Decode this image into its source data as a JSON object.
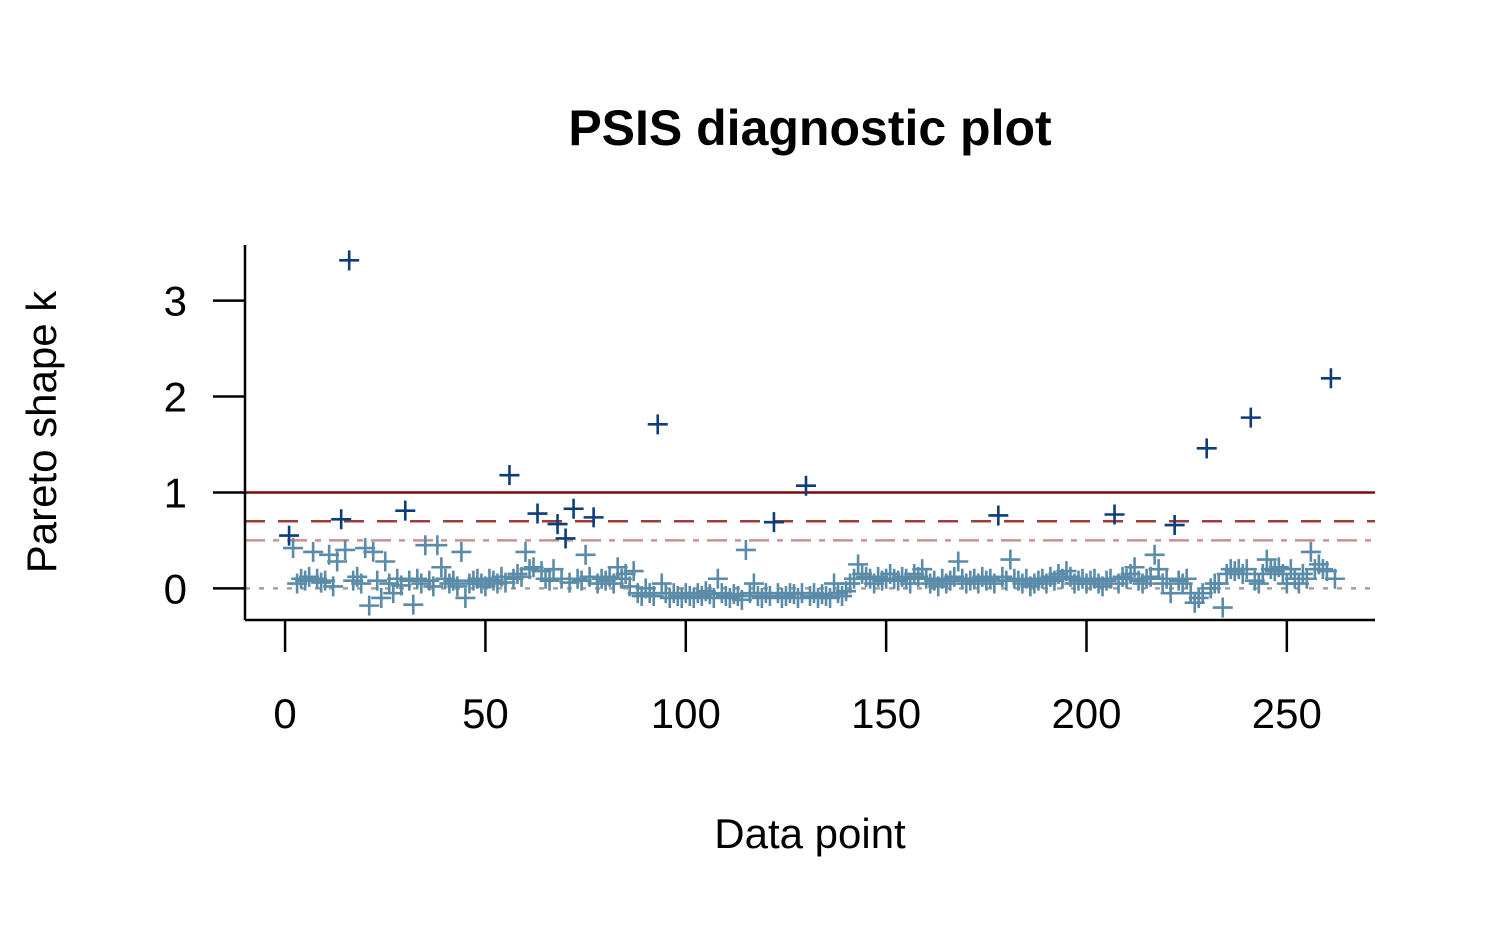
{
  "chart_data": {
    "type": "scatter",
    "title": "PSIS diagnostic plot",
    "xlabel": "Data point",
    "ylabel": "Pareto shape k",
    "xlim": [
      -10,
      272
    ],
    "ylim": [
      -0.33,
      3.58
    ],
    "xticks": [
      0,
      50,
      100,
      150,
      200,
      250
    ],
    "yticks": [
      0,
      1,
      2,
      3
    ],
    "grid": false,
    "marker": "plus",
    "colors": {
      "high_k": "#0b3d7a",
      "low_k": "#5a8ba8",
      "line_1": "#7a0a0a",
      "line_07": "#a33a3a",
      "line_05": "#c99090",
      "line_0": "#a0a0a0"
    },
    "reference_lines": [
      {
        "y": 1,
        "style": "solid"
      },
      {
        "y": 0.7,
        "style": "dashed"
      },
      {
        "y": 0.5,
        "style": "dashdot"
      },
      {
        "y": 0,
        "style": "dotted"
      }
    ],
    "color_threshold": 0.5,
    "values": [
      0.55,
      0.42,
      0.05,
      0.1,
      0.08,
      0.12,
      0.38,
      0.1,
      0.06,
      0.08,
      0.35,
      0.02,
      0.28,
      0.72,
      0.4,
      3.42,
      0.08,
      0.12,
      0.05,
      0.42,
      -0.18,
      0.38,
      0.08,
      -0.1,
      0.28,
      0.05,
      -0.05,
      0.1,
      0.03,
      0.81,
      0.08,
      -0.17,
      0.1,
      0.05,
      0.45,
      0.08,
      0.02,
      0.45,
      0.22,
      0.1,
      0.05,
      0.08,
      0.02,
      0.38,
      -0.1,
      0.05,
      0.08,
      0.1,
      0.05,
      0.02,
      0.1,
      0.08,
      0.05,
      0.12,
      0.06,
      1.18,
      0.1,
      0.15,
      0.12,
      0.38,
      0.2,
      0.22,
      0.78,
      0.18,
      0.1,
      0.08,
      0.2,
      0.67,
      0.1,
      0.52,
      0.06,
      0.83,
      0.1,
      0.08,
      0.35,
      0.12,
      0.74,
      0.05,
      0.1,
      0.08,
      0.12,
      0.05,
      0.22,
      0.1,
      0.15,
      0.02,
      0.18,
      -0.05,
      -0.08,
      0.0,
      -0.05,
      -0.08,
      1.71,
      0.05,
      -0.05,
      -0.1,
      -0.05,
      -0.08,
      -0.1,
      -0.05,
      -0.08,
      -0.1,
      -0.05,
      -0.08,
      -0.03,
      -0.06,
      -0.1,
      0.1,
      -0.05,
      -0.08,
      -0.1,
      -0.06,
      -0.08,
      -0.12,
      0.4,
      -0.05,
      0.05,
      -0.08,
      -0.1,
      -0.05,
      -0.08,
      0.69,
      -0.05,
      -0.1,
      -0.08,
      -0.05,
      -0.06,
      -0.1,
      -0.05,
      1.07,
      -0.08,
      -0.05,
      -0.1,
      -0.06,
      -0.08,
      -0.1,
      0.05,
      -0.05,
      -0.08,
      -0.03,
      0.05,
      0.1,
      0.25,
      0.15,
      0.12,
      0.1,
      0.05,
      0.12,
      0.08,
      0.1,
      0.15,
      0.1,
      0.08,
      0.12,
      0.1,
      0.05,
      0.15,
      0.12,
      0.2,
      0.1,
      0.05,
      0.08,
      0.02,
      0.1,
      0.05,
      0.08,
      0.12,
      0.28,
      0.1,
      0.05,
      0.08,
      0.1,
      0.05,
      0.12,
      0.08,
      0.1,
      0.05,
      0.76,
      0.12,
      0.08,
      0.3,
      0.1,
      0.08,
      0.05,
      0.1,
      0.02,
      0.05,
      0.08,
      0.1,
      0.05,
      0.12,
      0.08,
      0.15,
      0.1,
      0.18,
      0.12,
      0.05,
      0.08,
      0.1,
      0.05,
      0.08,
      0.1,
      0.05,
      0.02,
      0.08,
      0.1,
      0.77,
      0.05,
      0.12,
      0.1,
      0.15,
      0.22,
      0.08,
      0.05,
      0.1,
      0.12,
      0.35,
      0.2,
      0.05,
      0.1,
      -0.05,
      0.66,
      0.08,
      0.05,
      0.1,
      -0.05,
      -0.15,
      -0.1,
      -0.05,
      1.46,
      0.0,
      0.05,
      0.05,
      -0.2,
      0.15,
      0.2,
      0.18,
      0.2,
      0.15,
      0.2,
      1.78,
      0.08,
      0.05,
      0.15,
      0.3,
      0.2,
      0.18,
      0.22,
      0.15,
      0.05,
      0.2,
      0.1,
      0.05,
      0.15,
      0.1,
      0.38,
      0.2,
      0.25,
      0.2,
      0.18,
      2.19,
      0.1
    ]
  }
}
